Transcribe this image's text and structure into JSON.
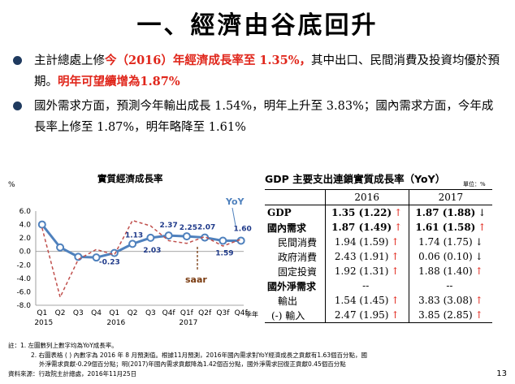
{
  "title": "一、經濟由谷底回升",
  "bullet1": {
    "part1": "主計總處上修",
    "part2": "今（2016）年經濟成長率至 1.35%，",
    "part3": "其中出口、民間消費及投資均優於預期。",
    "part4": "明年可望續增為1.87%"
  },
  "bullet2": {
    "text": "國外需求方面，預測今年輸出成長 1.54%，明年上升至 3.83%；國內需求方面，今年成長率上修至 1.87%，明年略降至 1.61%"
  },
  "chart": {
    "title": "實質經濟成長率",
    "y_unit": "%",
    "yoy_label": "YoY",
    "saar_label": "saar",
    "year_suffix": "季年"
  },
  "chart_data": {
    "type": "line",
    "title": "實質經濟成長率",
    "ylabel": "%",
    "ylim": [
      -8.0,
      6.0
    ],
    "yticks": [
      "6.0",
      "4.0",
      "2.0",
      "0.0",
      "-2.0",
      "-4.0",
      "-6.0",
      "-8.0"
    ],
    "yticks_values": [
      6,
      4,
      2,
      0,
      -2,
      -4,
      -6,
      -8
    ],
    "categories": [
      "Q1",
      "Q2",
      "Q3",
      "Q4",
      "Q1",
      "Q2",
      "Q3",
      "Q4f",
      "Q1f",
      "Q2f",
      "Q3f",
      "Q4f"
    ],
    "years": [
      {
        "label": "2015",
        "start": 0
      },
      {
        "label": "2016",
        "start": 4
      },
      {
        "label": "2017",
        "start": 8
      }
    ],
    "series": [
      {
        "name": "YoY",
        "color": "#4f81bd",
        "style": "solid",
        "values": [
          4.0,
          0.6,
          -0.8,
          -0.9,
          -0.23,
          1.13,
          2.03,
          2.37,
          2.25,
          2.07,
          1.59,
          1.6
        ]
      },
      {
        "name": "saar",
        "color": "#c0504d",
        "style": "dashed",
        "values": [
          3.5,
          -6.8,
          -1.2,
          0.3,
          -0.5,
          4.6,
          3.8,
          1.6,
          1.2,
          2.2,
          0.8,
          1.8
        ]
      }
    ],
    "data_labels": [
      {
        "i": 4,
        "text": "-0.23",
        "color": "#1f3a8a"
      },
      {
        "i": 5,
        "text": "1.13",
        "color": "#1f3a8a"
      },
      {
        "i": 6,
        "text": "2.03",
        "color": "#1f3a8a"
      },
      {
        "i": 7,
        "text": "2.37",
        "color": "#1f3a8a"
      },
      {
        "i": 8,
        "text": "2.25",
        "color": "#1f3a8a"
      },
      {
        "i": 9,
        "text": "2.07",
        "color": "#1f3a8a"
      },
      {
        "i": 10,
        "text": "1.59",
        "color": "#1f3a8a"
      },
      {
        "i": 11,
        "text": "1.60",
        "color": "#1f3a8a"
      }
    ]
  },
  "table": {
    "title": "GDP 主要支出連鎖實質成長率（YoY）",
    "unit": "單位：%",
    "headers": [
      "",
      "2016",
      "2017"
    ],
    "rows": [
      {
        "label": "GDP",
        "bold": true,
        "indent": false,
        "v2016": "1.35 (1.22)",
        "a2016": "↑",
        "v2017": "1.87 (1.88)",
        "a2017": "↓",
        "b2016": true,
        "b2017": true
      },
      {
        "label": "國內需求",
        "bold": true,
        "indent": false,
        "v2016": "1.87 (1.49)",
        "a2016": "↑",
        "v2017": "1.61 (1.58)",
        "a2017": "↑",
        "b2016": true,
        "b2017": true
      },
      {
        "label": "民間消費",
        "bold": false,
        "indent": true,
        "v2016": "1.94 (1.59)",
        "a2016": "↑",
        "v2017": "1.74 (1.75)",
        "a2017": "↓"
      },
      {
        "label": "政府消費",
        "bold": false,
        "indent": true,
        "v2016": "2.43 (1.91)",
        "a2016": "↑",
        "v2017": "0.06 (0.10)",
        "a2017": "↓"
      },
      {
        "label": "固定投資",
        "bold": false,
        "indent": true,
        "v2016": "1.92 (1.31)",
        "a2016": "↑",
        "v2017": "1.88 (1.40)",
        "a2017": "↑"
      },
      {
        "label": "國外淨需求",
        "bold": true,
        "indent": false,
        "v2016": "--",
        "a2016": "",
        "v2017": "--",
        "a2017": ""
      },
      {
        "label": "輸出",
        "bold": false,
        "indent": true,
        "v2016": "1.54 (1.45)",
        "a2016": "↑",
        "v2017": "3.83 (3.08)",
        "a2017": "↑"
      },
      {
        "label": "(-) 輸入",
        "bold": false,
        "indent": false,
        "v2016": "2.47 (1.95)",
        "a2016": "↑",
        "v2017": "3.85 (2.85)",
        "a2017": "↑"
      }
    ]
  },
  "notes": {
    "n1": "註：1. 左圖數列上數字均為YoY成長率。",
    "n2": "2. 右圖表格 ( ) 內數字為 2016 年 8 月預測值。根據11月預測，2016年國內需求對YoY經濟成長之貢獻有1.63個百分點，國",
    "n3": "外淨需求貢獻-0.29個百分點；明(2017)年國內需求貢獻降為1.42個百分點，國外淨需求回復正貢獻0.45個百分點",
    "source": "資料來源：行政院主計總處，2016年11月25日"
  },
  "page_number": "13"
}
